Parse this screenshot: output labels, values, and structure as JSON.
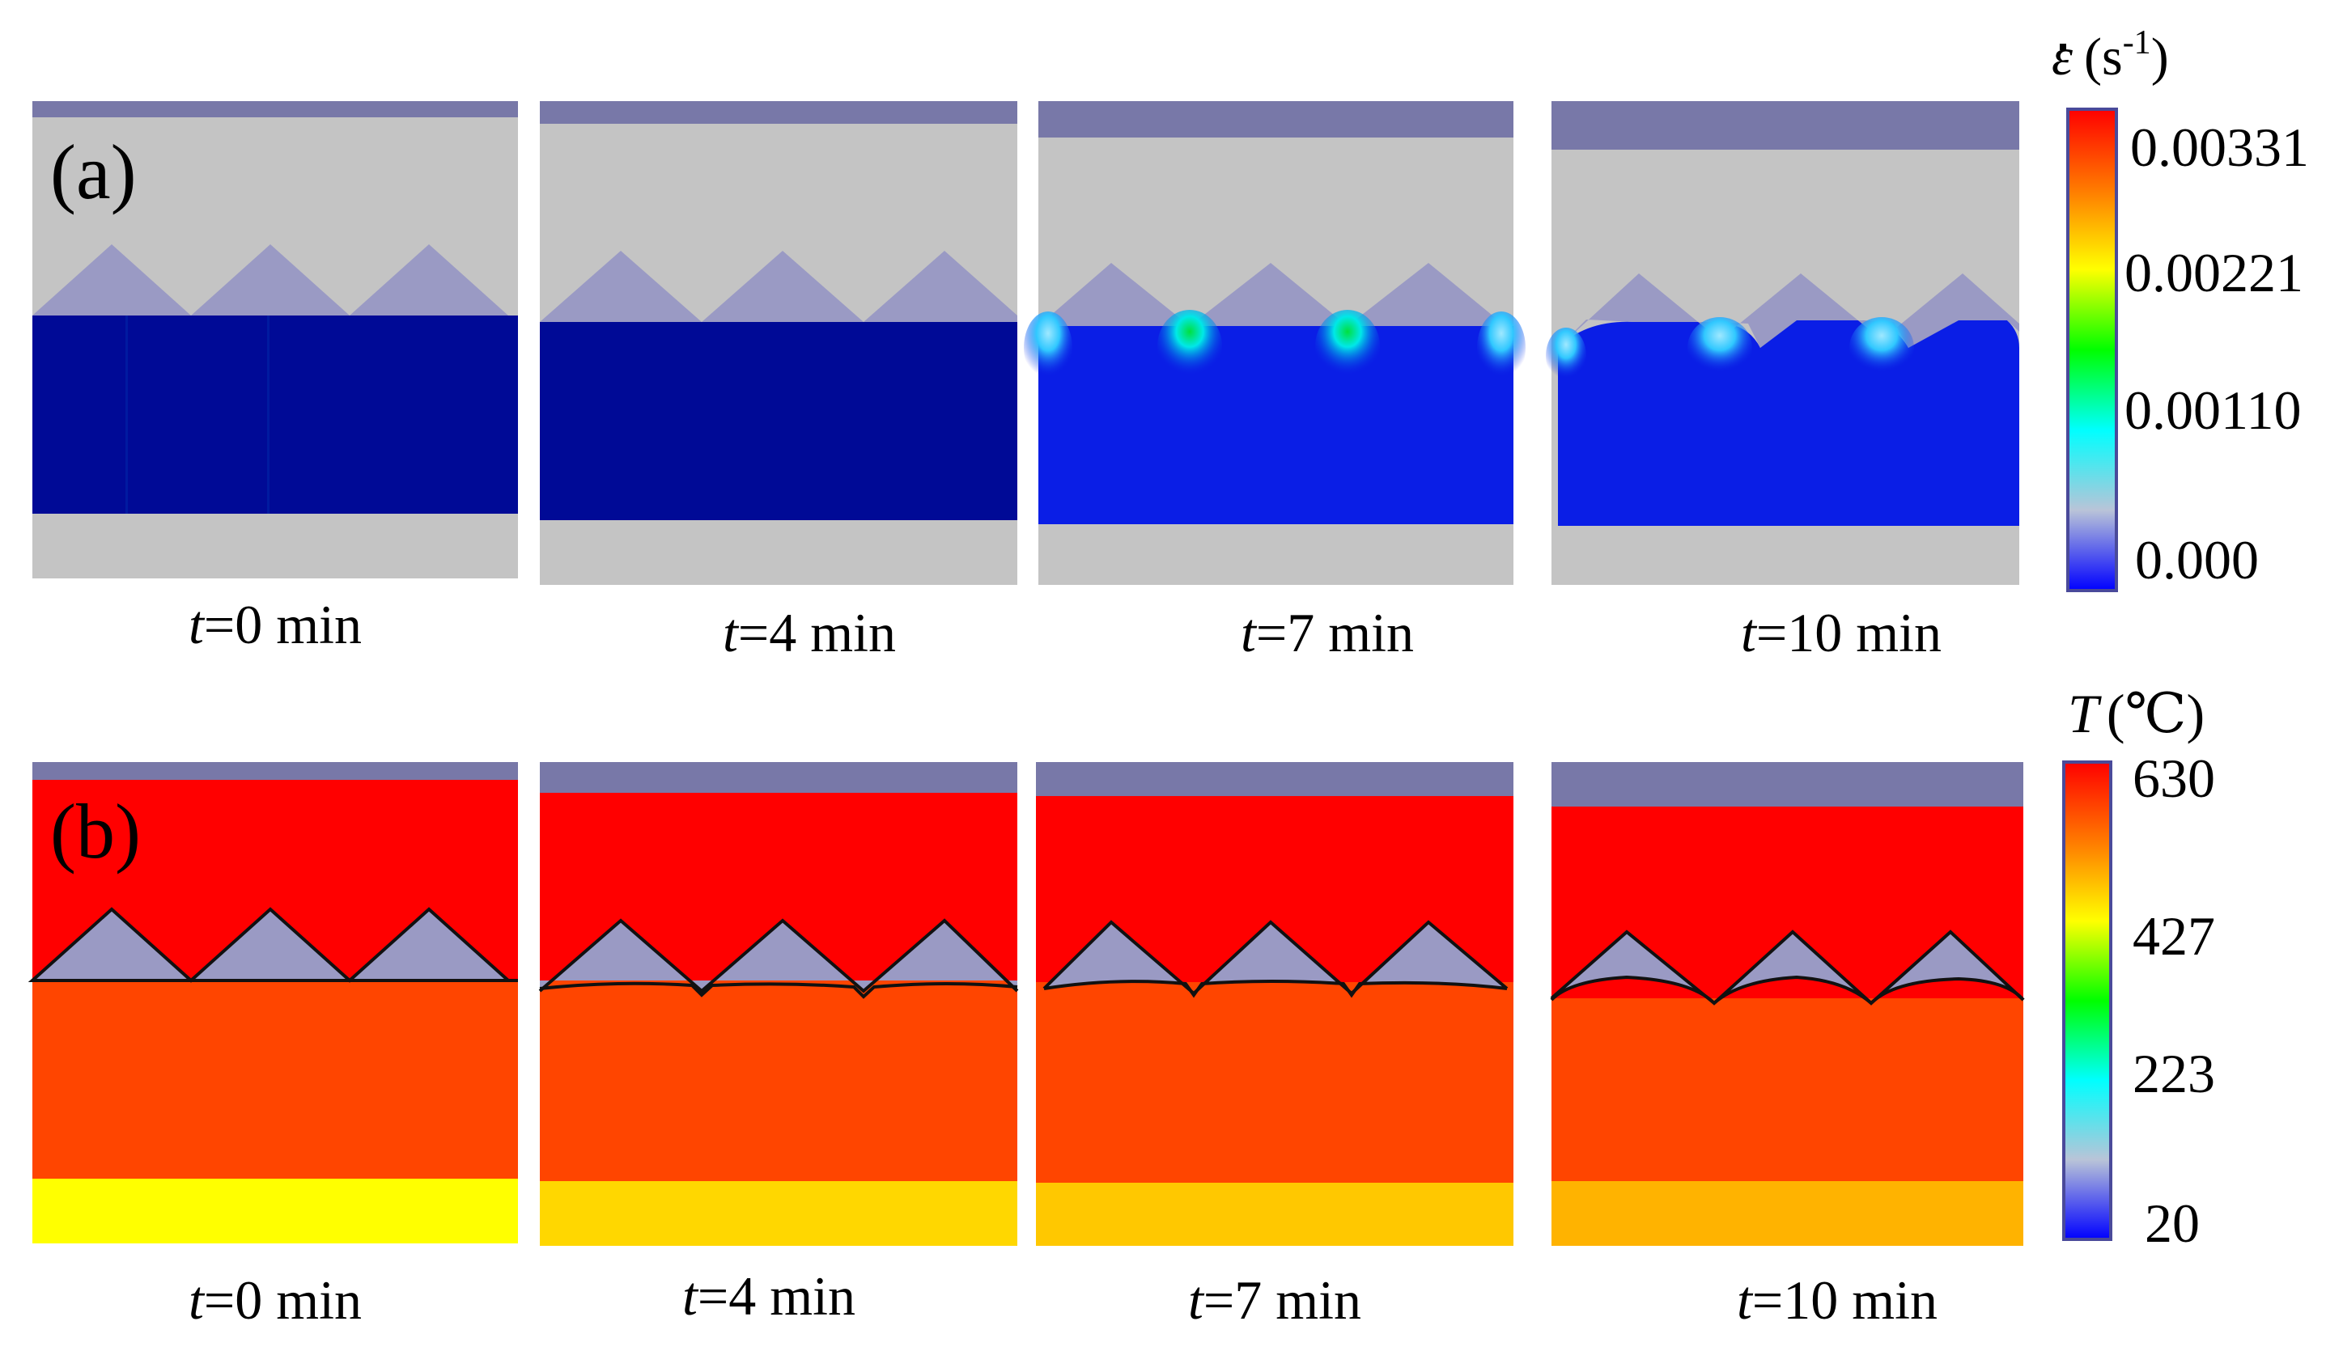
{
  "rows": [
    {
      "label": "(a)",
      "colorbar": {
        "title_symbol": "ε",
        "title_unit": "(s",
        "title_exp": "-1",
        "title_close": ")",
        "stops": [
          "#ff0000",
          "#ff7a00",
          "#ffff00",
          "#00ff00",
          "#00ffff",
          "#b9c4d8",
          "#0000ff"
        ],
        "ticks": [
          "0.00331",
          "0.00221",
          "0.00110",
          "0.000"
        ]
      },
      "panels": [
        {
          "time_var": "t",
          "time_text": "=0 min"
        },
        {
          "time_var": "t",
          "time_text": "=4 min"
        },
        {
          "time_var": "t",
          "time_text": "=7 min"
        },
        {
          "time_var": "t",
          "time_text": "=10 min"
        }
      ]
    },
    {
      "label": "(b)",
      "colorbar": {
        "title_symbol": "T",
        "title_unit": "(℃)",
        "stops": [
          "#ff0000",
          "#ff7a00",
          "#ffff00",
          "#00ff00",
          "#00ffff",
          "#b9c4d8",
          "#0000ff"
        ],
        "ticks": [
          "630",
          "427",
          "223",
          "20"
        ]
      },
      "panels": [
        {
          "time_var": "t",
          "time_text": "=0 min"
        },
        {
          "time_var": "t",
          "time_text": "=4 min"
        },
        {
          "time_var": "t",
          "time_text": "=7 min"
        },
        {
          "time_var": "t",
          "time_text": "=10 min"
        }
      ]
    }
  ],
  "colors": {
    "die_top": "#7878a8",
    "die_gray": "#c4c4c4",
    "strain_blue": "#000a96",
    "strain_blue_bright": "#0a1ee6",
    "teeth": "#9a9ac4",
    "temp_red": "#ff0000",
    "temp_orange": "#ff4500",
    "bottom_yellow_0": "#ffff00",
    "bottom_yellow_4": "#ffd700",
    "bottom_yellow_7": "#ffc800",
    "bottom_yellow_10": "#ffb300"
  }
}
